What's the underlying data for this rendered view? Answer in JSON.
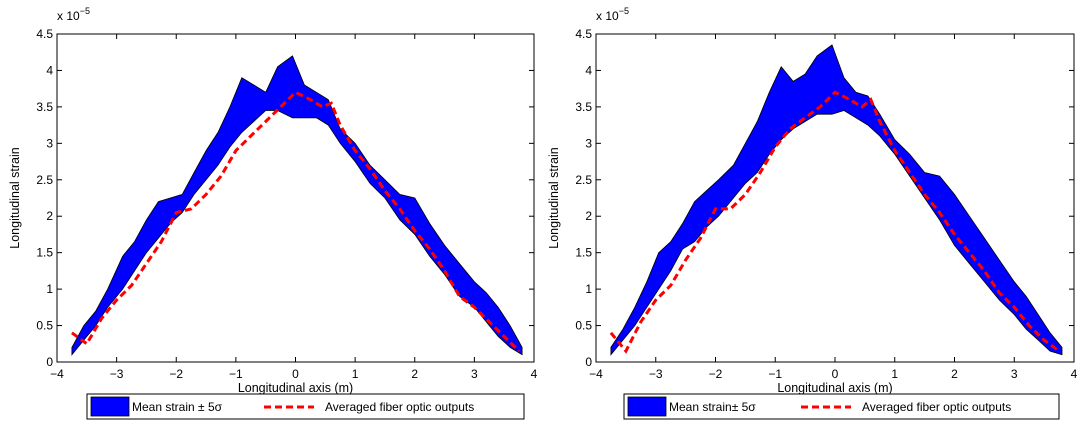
{
  "chart_data": [
    {
      "type": "area",
      "title": "",
      "xlabel": "Longitudinal axis (m)",
      "ylabel": "Longitudinal strain",
      "exponent_label": "x 10",
      "exponent_power": "-5",
      "xlim": [
        -4,
        4
      ],
      "ylim": [
        0,
        4.5
      ],
      "xticks": [
        "-4",
        "-3",
        "-2",
        "-1",
        "0",
        "1",
        "2",
        "3",
        "4"
      ],
      "yticks": [
        "0",
        "0.5",
        "1",
        "1.5",
        "2",
        "2.5",
        "3",
        "3.5",
        "4",
        "4.5"
      ],
      "legend": {
        "placement": "below",
        "band_label": "Mean strain ± 5σ",
        "line_label": "Averaged fiber optic outputs"
      },
      "colors": {
        "band": "#0000ff",
        "line": "#ff0000"
      },
      "band_upper": [
        [
          -3.75,
          0.2
        ],
        [
          -3.55,
          0.5
        ],
        [
          -3.35,
          0.7
        ],
        [
          -3.15,
          1.0
        ],
        [
          -2.9,
          1.45
        ],
        [
          -2.7,
          1.65
        ],
        [
          -2.5,
          1.95
        ],
        [
          -2.3,
          2.2
        ],
        [
          -2.1,
          2.25
        ],
        [
          -1.9,
          2.3
        ],
        [
          -1.7,
          2.6
        ],
        [
          -1.5,
          2.9
        ],
        [
          -1.3,
          3.15
        ],
        [
          -1.1,
          3.5
        ],
        [
          -0.9,
          3.9
        ],
        [
          -0.7,
          3.8
        ],
        [
          -0.5,
          3.7
        ],
        [
          -0.3,
          4.05
        ],
        [
          -0.05,
          4.2
        ],
        [
          0.15,
          3.8
        ],
        [
          0.35,
          3.7
        ],
        [
          0.55,
          3.6
        ],
        [
          0.75,
          3.2
        ],
        [
          1.0,
          3.0
        ],
        [
          1.25,
          2.7
        ],
        [
          1.5,
          2.5
        ],
        [
          1.75,
          2.3
        ],
        [
          2.0,
          2.25
        ],
        [
          2.25,
          1.9
        ],
        [
          2.5,
          1.6
        ],
        [
          2.75,
          1.35
        ],
        [
          3.0,
          1.1
        ],
        [
          3.2,
          0.95
        ],
        [
          3.4,
          0.75
        ],
        [
          3.6,
          0.5
        ],
        [
          3.8,
          0.2
        ]
      ],
      "band_lower": [
        [
          -3.75,
          0.1
        ],
        [
          -3.55,
          0.3
        ],
        [
          -3.35,
          0.5
        ],
        [
          -3.15,
          0.75
        ],
        [
          -2.9,
          1.0
        ],
        [
          -2.7,
          1.25
        ],
        [
          -2.5,
          1.5
        ],
        [
          -2.3,
          1.7
        ],
        [
          -2.1,
          1.9
        ],
        [
          -1.9,
          2.05
        ],
        [
          -1.7,
          2.3
        ],
        [
          -1.5,
          2.5
        ],
        [
          -1.3,
          2.7
        ],
        [
          -1.1,
          2.95
        ],
        [
          -0.9,
          3.15
        ],
        [
          -0.7,
          3.3
        ],
        [
          -0.5,
          3.45
        ],
        [
          -0.3,
          3.45
        ],
        [
          -0.05,
          3.35
        ],
        [
          0.15,
          3.35
        ],
        [
          0.35,
          3.35
        ],
        [
          0.55,
          3.25
        ],
        [
          0.75,
          3.0
        ],
        [
          1.0,
          2.75
        ],
        [
          1.25,
          2.45
        ],
        [
          1.5,
          2.25
        ],
        [
          1.75,
          1.95
        ],
        [
          2.0,
          1.75
        ],
        [
          2.25,
          1.45
        ],
        [
          2.5,
          1.2
        ],
        [
          2.75,
          0.9
        ],
        [
          3.0,
          0.75
        ],
        [
          3.2,
          0.55
        ],
        [
          3.4,
          0.35
        ],
        [
          3.6,
          0.2
        ],
        [
          3.8,
          0.1
        ]
      ],
      "line_points": [
        [
          -3.75,
          0.4
        ],
        [
          -3.5,
          0.25
        ],
        [
          -3.25,
          0.6
        ],
        [
          -3.0,
          0.85
        ],
        [
          -2.75,
          1.05
        ],
        [
          -2.5,
          1.35
        ],
        [
          -2.25,
          1.65
        ],
        [
          -2.0,
          2.05
        ],
        [
          -1.75,
          2.1
        ],
        [
          -1.5,
          2.3
        ],
        [
          -1.25,
          2.55
        ],
        [
          -1.0,
          2.9
        ],
        [
          -0.75,
          3.1
        ],
        [
          -0.5,
          3.3
        ],
        [
          -0.25,
          3.5
        ],
        [
          0.0,
          3.7
        ],
        [
          0.25,
          3.6
        ],
        [
          0.45,
          3.5
        ],
        [
          0.6,
          3.55
        ],
        [
          0.75,
          3.25
        ],
        [
          1.0,
          2.9
        ],
        [
          1.25,
          2.65
        ],
        [
          1.5,
          2.35
        ],
        [
          1.75,
          2.1
        ],
        [
          2.0,
          1.8
        ],
        [
          2.25,
          1.55
        ],
        [
          2.5,
          1.25
        ],
        [
          2.75,
          0.9
        ],
        [
          3.0,
          0.75
        ],
        [
          3.25,
          0.55
        ],
        [
          3.5,
          0.35
        ],
        [
          3.75,
          0.15
        ]
      ]
    },
    {
      "type": "area",
      "title": "",
      "xlabel": "Longitudinal axis (m)",
      "ylabel": "Longitudinal strain",
      "exponent_label": "x 10",
      "exponent_power": "-5",
      "xlim": [
        -4,
        4
      ],
      "ylim": [
        0,
        4.5
      ],
      "xticks": [
        "-4",
        "-3",
        "-2",
        "-1",
        "0",
        "1",
        "2",
        "3",
        "4"
      ],
      "yticks": [
        "0",
        "0.5",
        "1",
        "1.5",
        "2",
        "2.5",
        "3",
        "3.5",
        "4",
        "4.5"
      ],
      "legend": {
        "placement": "below",
        "band_label": "Mean strain± 5σ",
        "line_label": "Averaged fiber optic outputs"
      },
      "colors": {
        "band": "#0000ff",
        "line": "#ff0000"
      },
      "band_upper": [
        [
          -3.75,
          0.2
        ],
        [
          -3.55,
          0.45
        ],
        [
          -3.35,
          0.75
        ],
        [
          -3.15,
          1.1
        ],
        [
          -2.95,
          1.5
        ],
        [
          -2.75,
          1.65
        ],
        [
          -2.55,
          1.9
        ],
        [
          -2.35,
          2.2
        ],
        [
          -2.15,
          2.35
        ],
        [
          -1.95,
          2.5
        ],
        [
          -1.7,
          2.7
        ],
        [
          -1.5,
          3.0
        ],
        [
          -1.3,
          3.3
        ],
        [
          -1.1,
          3.7
        ],
        [
          -0.9,
          4.05
        ],
        [
          -0.7,
          3.85
        ],
        [
          -0.5,
          3.95
        ],
        [
          -0.3,
          4.2
        ],
        [
          -0.05,
          4.35
        ],
        [
          0.15,
          3.9
        ],
        [
          0.35,
          3.7
        ],
        [
          0.55,
          3.65
        ],
        [
          0.75,
          3.4
        ],
        [
          1.0,
          3.05
        ],
        [
          1.25,
          2.85
        ],
        [
          1.5,
          2.6
        ],
        [
          1.75,
          2.55
        ],
        [
          2.0,
          2.3
        ],
        [
          2.25,
          2.0
        ],
        [
          2.5,
          1.7
        ],
        [
          2.75,
          1.4
        ],
        [
          3.0,
          1.1
        ],
        [
          3.2,
          0.9
        ],
        [
          3.4,
          0.65
        ],
        [
          3.6,
          0.4
        ],
        [
          3.8,
          0.2
        ]
      ],
      "band_lower": [
        [
          -3.75,
          0.1
        ],
        [
          -3.55,
          0.3
        ],
        [
          -3.35,
          0.5
        ],
        [
          -3.15,
          0.75
        ],
        [
          -2.95,
          1.0
        ],
        [
          -2.75,
          1.25
        ],
        [
          -2.55,
          1.55
        ],
        [
          -2.35,
          1.65
        ],
        [
          -2.15,
          1.85
        ],
        [
          -1.95,
          2.0
        ],
        [
          -1.7,
          2.25
        ],
        [
          -1.5,
          2.45
        ],
        [
          -1.3,
          2.6
        ],
        [
          -1.1,
          2.85
        ],
        [
          -0.9,
          3.05
        ],
        [
          -0.7,
          3.2
        ],
        [
          -0.5,
          3.3
        ],
        [
          -0.3,
          3.4
        ],
        [
          -0.05,
          3.4
        ],
        [
          0.15,
          3.45
        ],
        [
          0.35,
          3.35
        ],
        [
          0.55,
          3.25
        ],
        [
          0.75,
          3.1
        ],
        [
          1.0,
          2.85
        ],
        [
          1.25,
          2.55
        ],
        [
          1.5,
          2.25
        ],
        [
          1.75,
          1.95
        ],
        [
          2.0,
          1.6
        ],
        [
          2.25,
          1.35
        ],
        [
          2.5,
          1.1
        ],
        [
          2.75,
          0.85
        ],
        [
          3.0,
          0.65
        ],
        [
          3.2,
          0.45
        ],
        [
          3.4,
          0.3
        ],
        [
          3.6,
          0.15
        ],
        [
          3.8,
          0.1
        ]
      ],
      "line_points": [
        [
          -3.75,
          0.4
        ],
        [
          -3.5,
          0.15
        ],
        [
          -3.25,
          0.55
        ],
        [
          -3.0,
          0.85
        ],
        [
          -2.75,
          1.05
        ],
        [
          -2.5,
          1.4
        ],
        [
          -2.25,
          1.7
        ],
        [
          -2.0,
          2.1
        ],
        [
          -1.75,
          2.1
        ],
        [
          -1.5,
          2.3
        ],
        [
          -1.25,
          2.6
        ],
        [
          -1.0,
          2.95
        ],
        [
          -0.75,
          3.2
        ],
        [
          -0.5,
          3.35
        ],
        [
          -0.25,
          3.5
        ],
        [
          0.0,
          3.7
        ],
        [
          0.25,
          3.6
        ],
        [
          0.45,
          3.5
        ],
        [
          0.6,
          3.6
        ],
        [
          0.75,
          3.3
        ],
        [
          1.0,
          2.9
        ],
        [
          1.25,
          2.6
        ],
        [
          1.5,
          2.3
        ],
        [
          1.75,
          2.05
        ],
        [
          2.0,
          1.75
        ],
        [
          2.25,
          1.5
        ],
        [
          2.5,
          1.25
        ],
        [
          2.75,
          0.95
        ],
        [
          3.0,
          0.75
        ],
        [
          3.25,
          0.5
        ],
        [
          3.5,
          0.3
        ],
        [
          3.75,
          0.15
        ]
      ]
    }
  ]
}
